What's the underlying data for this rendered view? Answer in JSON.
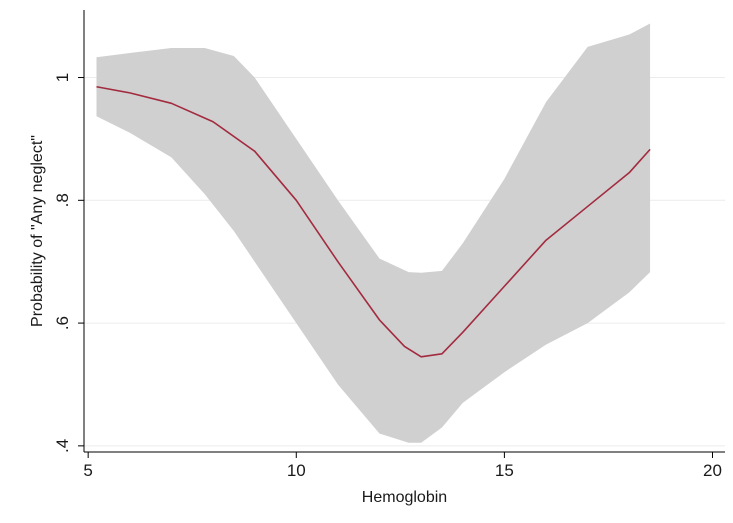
{
  "chart_data": {
    "type": "area",
    "title": "",
    "xlabel": "Hemoglobin",
    "ylabel": "Probability of \"Any neglect\"",
    "xlim": [
      4.9,
      20.3
    ],
    "ylim": [
      0.39,
      1.11
    ],
    "grid": "horizontal",
    "legend": "none",
    "x_ticks": [
      5,
      10,
      15,
      20
    ],
    "x_tick_labels": [
      "5",
      "10",
      "15",
      "20"
    ],
    "y_ticks": [
      0.4,
      0.6,
      0.8,
      1.0
    ],
    "y_tick_labels": [
      ".4",
      ".6",
      ".8",
      "1"
    ],
    "colors": {
      "band": "#d0d0d0",
      "line": "#a32b3f",
      "grid": "#ececec",
      "axis": "#000000"
    },
    "series": [
      {
        "type": "line",
        "x": [
          5.2,
          6,
          7,
          8,
          9,
          10,
          11,
          12,
          12.6,
          13,
          13.5,
          14,
          15,
          16,
          17,
          18,
          18.5
        ],
        "values": [
          0.985,
          0.975,
          0.958,
          0.928,
          0.88,
          0.8,
          0.7,
          0.605,
          0.562,
          0.545,
          0.55,
          0.585,
          0.66,
          0.735,
          0.79,
          0.845,
          0.883
        ]
      },
      {
        "type": "band",
        "x": [
          5.2,
          6,
          7,
          7.8,
          8.5,
          9,
          10,
          11,
          12,
          12.7,
          13,
          13.5,
          14,
          15,
          16,
          17,
          18,
          18.5
        ],
        "upper": [
          1.033,
          1.04,
          1.048,
          1.048,
          1.035,
          1.0,
          0.9,
          0.8,
          0.705,
          0.683,
          0.682,
          0.685,
          0.73,
          0.835,
          0.96,
          1.05,
          1.07,
          1.088
        ],
        "lower": [
          0.937,
          0.91,
          0.87,
          0.81,
          0.75,
          0.7,
          0.6,
          0.5,
          0.42,
          0.405,
          0.405,
          0.43,
          0.47,
          0.52,
          0.565,
          0.6,
          0.65,
          0.683
        ]
      }
    ]
  }
}
